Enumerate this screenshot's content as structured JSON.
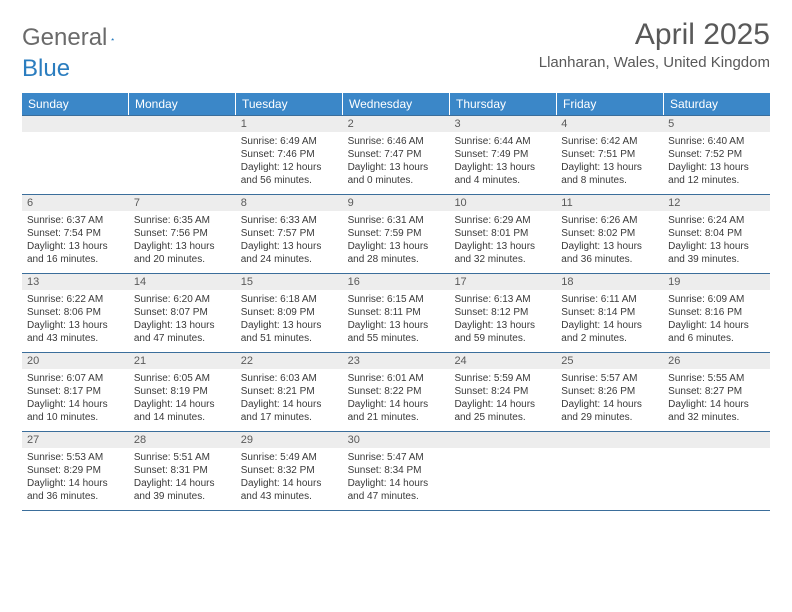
{
  "brand": {
    "part1": "General",
    "part2": "Blue"
  },
  "title": "April 2025",
  "location": "Llanharan, Wales, United Kingdom",
  "colors": {
    "header_bg": "#3b87c8",
    "header_text": "#ffffff",
    "daynum_bg": "#ededed",
    "border": "#3b6e9b",
    "brand_gray": "#6a6a6a",
    "brand_blue": "#2b7dbf"
  },
  "day_names": [
    "Sunday",
    "Monday",
    "Tuesday",
    "Wednesday",
    "Thursday",
    "Friday",
    "Saturday"
  ],
  "weeks": [
    [
      {
        "n": "",
        "sr": "",
        "ss": "",
        "dl": ""
      },
      {
        "n": "",
        "sr": "",
        "ss": "",
        "dl": ""
      },
      {
        "n": "1",
        "sr": "Sunrise: 6:49 AM",
        "ss": "Sunset: 7:46 PM",
        "dl": "Daylight: 12 hours and 56 minutes."
      },
      {
        "n": "2",
        "sr": "Sunrise: 6:46 AM",
        "ss": "Sunset: 7:47 PM",
        "dl": "Daylight: 13 hours and 0 minutes."
      },
      {
        "n": "3",
        "sr": "Sunrise: 6:44 AM",
        "ss": "Sunset: 7:49 PM",
        "dl": "Daylight: 13 hours and 4 minutes."
      },
      {
        "n": "4",
        "sr": "Sunrise: 6:42 AM",
        "ss": "Sunset: 7:51 PM",
        "dl": "Daylight: 13 hours and 8 minutes."
      },
      {
        "n": "5",
        "sr": "Sunrise: 6:40 AM",
        "ss": "Sunset: 7:52 PM",
        "dl": "Daylight: 13 hours and 12 minutes."
      }
    ],
    [
      {
        "n": "6",
        "sr": "Sunrise: 6:37 AM",
        "ss": "Sunset: 7:54 PM",
        "dl": "Daylight: 13 hours and 16 minutes."
      },
      {
        "n": "7",
        "sr": "Sunrise: 6:35 AM",
        "ss": "Sunset: 7:56 PM",
        "dl": "Daylight: 13 hours and 20 minutes."
      },
      {
        "n": "8",
        "sr": "Sunrise: 6:33 AM",
        "ss": "Sunset: 7:57 PM",
        "dl": "Daylight: 13 hours and 24 minutes."
      },
      {
        "n": "9",
        "sr": "Sunrise: 6:31 AM",
        "ss": "Sunset: 7:59 PM",
        "dl": "Daylight: 13 hours and 28 minutes."
      },
      {
        "n": "10",
        "sr": "Sunrise: 6:29 AM",
        "ss": "Sunset: 8:01 PM",
        "dl": "Daylight: 13 hours and 32 minutes."
      },
      {
        "n": "11",
        "sr": "Sunrise: 6:26 AM",
        "ss": "Sunset: 8:02 PM",
        "dl": "Daylight: 13 hours and 36 minutes."
      },
      {
        "n": "12",
        "sr": "Sunrise: 6:24 AM",
        "ss": "Sunset: 8:04 PM",
        "dl": "Daylight: 13 hours and 39 minutes."
      }
    ],
    [
      {
        "n": "13",
        "sr": "Sunrise: 6:22 AM",
        "ss": "Sunset: 8:06 PM",
        "dl": "Daylight: 13 hours and 43 minutes."
      },
      {
        "n": "14",
        "sr": "Sunrise: 6:20 AM",
        "ss": "Sunset: 8:07 PM",
        "dl": "Daylight: 13 hours and 47 minutes."
      },
      {
        "n": "15",
        "sr": "Sunrise: 6:18 AM",
        "ss": "Sunset: 8:09 PM",
        "dl": "Daylight: 13 hours and 51 minutes."
      },
      {
        "n": "16",
        "sr": "Sunrise: 6:15 AM",
        "ss": "Sunset: 8:11 PM",
        "dl": "Daylight: 13 hours and 55 minutes."
      },
      {
        "n": "17",
        "sr": "Sunrise: 6:13 AM",
        "ss": "Sunset: 8:12 PM",
        "dl": "Daylight: 13 hours and 59 minutes."
      },
      {
        "n": "18",
        "sr": "Sunrise: 6:11 AM",
        "ss": "Sunset: 8:14 PM",
        "dl": "Daylight: 14 hours and 2 minutes."
      },
      {
        "n": "19",
        "sr": "Sunrise: 6:09 AM",
        "ss": "Sunset: 8:16 PM",
        "dl": "Daylight: 14 hours and 6 minutes."
      }
    ],
    [
      {
        "n": "20",
        "sr": "Sunrise: 6:07 AM",
        "ss": "Sunset: 8:17 PM",
        "dl": "Daylight: 14 hours and 10 minutes."
      },
      {
        "n": "21",
        "sr": "Sunrise: 6:05 AM",
        "ss": "Sunset: 8:19 PM",
        "dl": "Daylight: 14 hours and 14 minutes."
      },
      {
        "n": "22",
        "sr": "Sunrise: 6:03 AM",
        "ss": "Sunset: 8:21 PM",
        "dl": "Daylight: 14 hours and 17 minutes."
      },
      {
        "n": "23",
        "sr": "Sunrise: 6:01 AM",
        "ss": "Sunset: 8:22 PM",
        "dl": "Daylight: 14 hours and 21 minutes."
      },
      {
        "n": "24",
        "sr": "Sunrise: 5:59 AM",
        "ss": "Sunset: 8:24 PM",
        "dl": "Daylight: 14 hours and 25 minutes."
      },
      {
        "n": "25",
        "sr": "Sunrise: 5:57 AM",
        "ss": "Sunset: 8:26 PM",
        "dl": "Daylight: 14 hours and 29 minutes."
      },
      {
        "n": "26",
        "sr": "Sunrise: 5:55 AM",
        "ss": "Sunset: 8:27 PM",
        "dl": "Daylight: 14 hours and 32 minutes."
      }
    ],
    [
      {
        "n": "27",
        "sr": "Sunrise: 5:53 AM",
        "ss": "Sunset: 8:29 PM",
        "dl": "Daylight: 14 hours and 36 minutes."
      },
      {
        "n": "28",
        "sr": "Sunrise: 5:51 AM",
        "ss": "Sunset: 8:31 PM",
        "dl": "Daylight: 14 hours and 39 minutes."
      },
      {
        "n": "29",
        "sr": "Sunrise: 5:49 AM",
        "ss": "Sunset: 8:32 PM",
        "dl": "Daylight: 14 hours and 43 minutes."
      },
      {
        "n": "30",
        "sr": "Sunrise: 5:47 AM",
        "ss": "Sunset: 8:34 PM",
        "dl": "Daylight: 14 hours and 47 minutes."
      },
      {
        "n": "",
        "sr": "",
        "ss": "",
        "dl": ""
      },
      {
        "n": "",
        "sr": "",
        "ss": "",
        "dl": ""
      },
      {
        "n": "",
        "sr": "",
        "ss": "",
        "dl": ""
      }
    ]
  ]
}
